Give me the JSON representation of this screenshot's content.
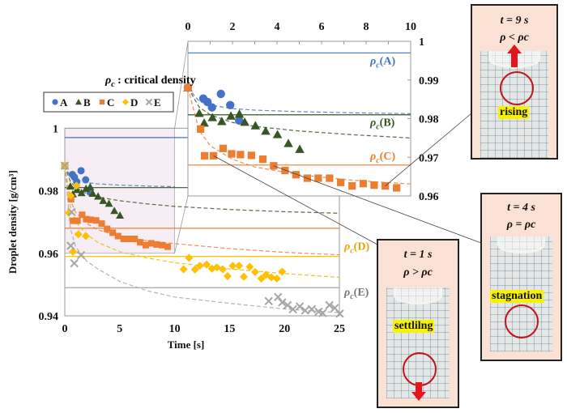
{
  "legend": {
    "title": "ρc : critical density",
    "title_symbol": "ρ",
    "title_sub": "c",
    "title_rest": " : critical density",
    "entries": [
      "A",
      "B",
      "C",
      "D",
      "E"
    ]
  },
  "chart_data": [
    {
      "type": "scatter",
      "role": "main",
      "xlabel": "Time [s]",
      "ylabel": "Droplet density [g/cm³]",
      "xlim": [
        0,
        25
      ],
      "ylim": [
        0.94,
        1.0
      ],
      "xticks": [
        "0",
        "5",
        "10",
        "15",
        "20",
        "25"
      ],
      "yticks": [
        "0.94",
        "0.96",
        "0.98",
        "1"
      ],
      "grid": false,
      "legend_position": "top-left",
      "highlight_region": {
        "x": [
          0,
          10
        ],
        "y": [
          0.96,
          1.0
        ],
        "color": "#f7eef5"
      },
      "series": [
        {
          "name": "A",
          "marker": "circle",
          "color": "#4472c4",
          "x": [
            0,
            0.69,
            0.88,
            1.08,
            1.48,
            1.9,
            2.3
          ],
          "y": [
            0.988,
            0.9852,
            0.9843,
            0.9829,
            0.9864,
            0.9835,
            0.9795
          ],
          "critical": 0.997,
          "fit": {
            "x": [
              0,
              0.5,
              1,
              2,
              3,
              5,
              7.5,
              10
            ],
            "y": [
              0.988,
              0.9845,
              0.9835,
              0.9826,
              0.9822,
              0.9818,
              0.9815,
              0.9813
            ]
          }
        },
        {
          "name": "B",
          "marker": "triangle",
          "color": "#375623",
          "x": [
            0,
            0.51,
            0.73,
            1.1,
            1.52,
            1.93,
            2.31,
            2.55,
            3.03,
            3.49,
            4.02,
            4.51,
            5.02
          ],
          "y": [
            0.988,
            0.9814,
            0.9789,
            0.9803,
            0.9793,
            0.9807,
            0.9812,
            0.9791,
            0.9782,
            0.9768,
            0.9759,
            0.9736,
            0.9721
          ],
          "critical": 0.981,
          "fit": {
            "x": [
              0,
              0.5,
              1,
              2,
              3,
              5,
              7.5,
              10,
              15,
              20,
              25
            ],
            "y": [
              0.988,
              0.983,
              0.981,
              0.979,
              0.978,
              0.9768,
              0.9758,
              0.975,
              0.974,
              0.9733,
              0.9728
            ]
          }
        },
        {
          "name": "C",
          "marker": "square",
          "color": "#ed7d31",
          "x": [
            0,
            0.57,
            0.75,
            1.15,
            1.58,
            1.96,
            2.36,
            2.85,
            3.36,
            3.85,
            4.36,
            4.85,
            5.36,
            5.85,
            6.36,
            6.86,
            7.37,
            7.87,
            8.36,
            8.86,
            9.37
          ],
          "y": [
            0.988,
            0.9773,
            0.9704,
            0.9704,
            0.9723,
            0.9709,
            0.9707,
            0.9705,
            0.9695,
            0.9678,
            0.9666,
            0.9655,
            0.9646,
            0.9646,
            0.9646,
            0.9635,
            0.9626,
            0.9632,
            0.9628,
            0.9626,
            0.9621
          ],
          "critical": 0.968,
          "fit": {
            "x": [
              0,
              0.5,
              1,
              2,
              3,
              5,
              7.5,
              10,
              15,
              20,
              25
            ],
            "y": [
              0.988,
              0.977,
              0.973,
              0.9695,
              0.9675,
              0.9655,
              0.964,
              0.9631,
              0.9615,
              0.9603,
              0.9595
            ]
          }
        },
        {
          "name": "D",
          "marker": "diamond",
          "color": "#ffc000",
          "x": [
            0,
            0.37,
            0.54,
            0.74,
            1.06,
            1.23,
            1.92,
            10.82,
            11.31,
            11.85,
            12.29,
            12.91,
            13.4,
            13.84,
            14.38,
            14.82,
            15.29,
            15.86,
            16.3,
            16.84,
            17.33,
            17.89,
            18.31,
            18.81,
            19.3,
            19.79
          ],
          "y": [
            0.988,
            0.973,
            0.9784,
            0.9605,
            0.9816,
            0.9661,
            0.9655,
            0.9549,
            0.9585,
            0.9548,
            0.956,
            0.9564,
            0.9551,
            0.9555,
            0.9549,
            0.9527,
            0.956,
            0.956,
            0.9525,
            0.9557,
            0.954,
            0.9519,
            0.9531,
            0.9523,
            0.9519,
            0.9541
          ],
          "critical": 0.959,
          "fit": {
            "x": [
              0,
              0.5,
              1,
              2,
              3,
              5,
              7.5,
              10,
              15,
              20,
              25
            ],
            "y": [
              0.988,
              0.975,
              0.97,
              0.966,
              0.9635,
              0.9605,
              0.9585,
              0.957,
              0.955,
              0.9535,
              0.9523
            ]
          }
        },
        {
          "name": "E",
          "marker": "cross",
          "color": "#a5a5a5",
          "x": [
            0,
            0.54,
            0.62,
            0.86,
            1.48,
            18.56,
            19.42,
            19.79,
            20.28,
            20.77,
            21.39,
            21.88,
            22.49,
            23.11,
            23.48,
            24.09,
            24.58,
            25.03
          ],
          "y": [
            0.988,
            0.9624,
            0.9732,
            0.9568,
            0.9594,
            0.9447,
            0.946,
            0.9443,
            0.9434,
            0.9421,
            0.943,
            0.9417,
            0.9421,
            0.9413,
            0.9409,
            0.9434,
            0.9425,
            0.9407
          ],
          "critical": 0.949,
          "fit": {
            "x": [
              0,
              0.5,
              1,
              2,
              3,
              5,
              7.5,
              10,
              15,
              20,
              25
            ],
            "y": [
              0.988,
              0.968,
              0.962,
              0.9575,
              0.955,
              0.951,
              0.948,
              0.946,
              0.944,
              0.9422,
              0.941
            ]
          }
        }
      ],
      "critical_labels": [
        {
          "series": "D",
          "symbol": "ρ",
          "sub": "c",
          "name": "(D)"
        },
        {
          "series": "E",
          "symbol": "ρ",
          "sub": "c",
          "name": "(E)"
        }
      ]
    },
    {
      "type": "scatter",
      "role": "inset",
      "xlim": [
        0,
        10
      ],
      "ylim": [
        0.96,
        1.0
      ],
      "xticks": [
        "0",
        "2",
        "4",
        "6",
        "8",
        "10"
      ],
      "yticks": [
        "0.96",
        "0.97",
        "0.98",
        "0.99",
        "1"
      ],
      "series_shown": [
        "A",
        "B",
        "C"
      ],
      "critical_labels": [
        {
          "series": "A",
          "symbol": "ρ",
          "sub": "c",
          "name": "(A)"
        },
        {
          "series": "B",
          "symbol": "ρ",
          "sub": "c",
          "name": "(B)"
        },
        {
          "series": "C",
          "symbol": "ρ",
          "sub": "c",
          "name": "(C)"
        }
      ]
    }
  ],
  "panels": [
    {
      "time": "t = 9 s",
      "relation": "ρ < ρc",
      "state": "rising",
      "arrow": "up"
    },
    {
      "time": "t = 4 s",
      "relation": "ρ = ρc",
      "state": "stagnation",
      "arrow": "none"
    },
    {
      "time": "t = 1 s",
      "relation": "ρ > ρc",
      "state": "settlilng",
      "arrow": "down"
    }
  ]
}
